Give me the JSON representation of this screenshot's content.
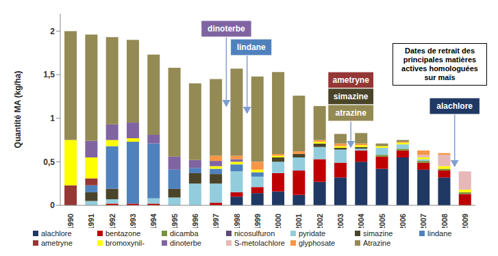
{
  "chart_data": {
    "type": "bar",
    "stacked": true,
    "grid": false,
    "legend": "bottom",
    "ylabel": "Quantité MA (kg/ha)",
    "categories": [
      "1990",
      "1991",
      "1992",
      "1993",
      "1994",
      "1995",
      "1996",
      "1997",
      "1998",
      "1999",
      "2000",
      "2001",
      "2002",
      "2003",
      "2004",
      "2005",
      "2006",
      "2007",
      "2008",
      "2009"
    ],
    "ylim": [
      0,
      2.2
    ],
    "yticks": [
      0,
      {
        "value": 0.5,
        "label": "0,5"
      },
      1,
      {
        "value": 1.5,
        "label": "1,5"
      },
      2
    ],
    "series": [
      {
        "name": "alachlore",
        "color": "#1f3864",
        "values": [
          0,
          0,
          0,
          0,
          0,
          0,
          0,
          0,
          0.1,
          0.14,
          0.16,
          0.12,
          0.27,
          0.32,
          0.5,
          0.42,
          0.55,
          0.41,
          0.32,
          0
        ]
      },
      {
        "name": "bentazone",
        "color": "#c00000",
        "values": [
          0,
          0,
          0.02,
          0.02,
          0.02,
          0,
          0,
          0.03,
          0.05,
          0.07,
          0.21,
          0.28,
          0.26,
          0.17,
          0.13,
          0.14,
          0.08,
          0.08,
          0.08,
          0.13
        ]
      },
      {
        "name": "dicamba",
        "color": "#77933c",
        "values": [
          0,
          0,
          0,
          0,
          0,
          0,
          0,
          0,
          0,
          0,
          0,
          0,
          0,
          0,
          0,
          0.02,
          0.02,
          0.02,
          0.02,
          0.02
        ]
      },
      {
        "name": "nicosulfuron",
        "color": "#604a7b",
        "values": [
          0,
          0,
          0,
          0,
          0,
          0,
          0,
          0,
          0,
          0,
          0,
          0,
          0,
          0,
          0,
          0,
          0,
          0,
          0,
          0
        ]
      },
      {
        "name": "pyridate",
        "color": "#93cddd",
        "values": [
          0,
          0.05,
          0.05,
          0,
          0.06,
          0.09,
          0.25,
          0.22,
          0.24,
          0.12,
          0.13,
          0.15,
          0.14,
          0.15,
          0.02,
          0.08,
          0.05,
          0.02,
          0,
          0
        ]
      },
      {
        "name": "simazine",
        "color": "#4a452a",
        "values": [
          0,
          0.1,
          0.12,
          0,
          0,
          0.1,
          0.12,
          0.11,
          0,
          0,
          0.05,
          0.04,
          0.04,
          0.02,
          0.02,
          0,
          0,
          0,
          0,
          0
        ]
      },
      {
        "name": "lindane",
        "color": "#4f81bd",
        "values": [
          0,
          0.08,
          0.49,
          0.71,
          0.63,
          0.22,
          0.06,
          0.06,
          0.08,
          0.05,
          0,
          0,
          0,
          0,
          0,
          0,
          0,
          0,
          0,
          0
        ]
      },
      {
        "name": "ametryne",
        "color": "#953735",
        "values": [
          0.23,
          0.08,
          0,
          0,
          0,
          0,
          0,
          0,
          0,
          0,
          0,
          0,
          0,
          0,
          0,
          0,
          0,
          0,
          0,
          0
        ]
      },
      {
        "name": "bromoxynil-",
        "color": "#ffff00",
        "values": [
          0.52,
          0.24,
          0.07,
          0.04,
          0,
          0,
          0,
          0.03,
          0.03,
          0.03,
          0.02,
          0,
          0.02,
          0.02,
          0.02,
          0.02,
          0.02,
          0.02,
          0.03,
          0.03
        ]
      },
      {
        "name": "dinoterbe",
        "color": "#8064a2",
        "values": [
          0,
          0.19,
          0.18,
          0.18,
          0.1,
          0.15,
          0.09,
          0.06,
          0.03,
          0,
          0,
          0,
          0,
          0,
          0,
          0,
          0,
          0,
          0,
          0
        ]
      },
      {
        "name": "S-metolachlore",
        "color": "#e6b9b8",
        "values": [
          0,
          0,
          0,
          0,
          0,
          0,
          0,
          0,
          0,
          0,
          0,
          0,
          0,
          0,
          0,
          0,
          0,
          0.03,
          0.13,
          0.21
        ]
      },
      {
        "name": "glyphosate",
        "color": "#f79646",
        "values": [
          0,
          0,
          0,
          0,
          0,
          0,
          0,
          0.06,
          0.04,
          0.09,
          0.02,
          0.03,
          0.02,
          0.03,
          0.02,
          0,
          0.01,
          0.05,
          0.02,
          0
        ]
      },
      {
        "name": "Atrazine",
        "color": "#948a54",
        "values": [
          1.25,
          1.22,
          1.0,
          0.95,
          0.92,
          1.02,
          0.88,
          0.88,
          1.0,
          0.98,
          0.94,
          0.64,
          0.39,
          0.11,
          0.12,
          0.03,
          0.02,
          0,
          0,
          0
        ]
      }
    ],
    "annotations": [
      {
        "labels": [
          {
            "text": "dinoterbe",
            "color": "#8064a2"
          }
        ],
        "between": [
          "1997",
          "1998"
        ],
        "y": 1.14
      },
      {
        "labels": [
          {
            "text": "lindane",
            "color": "#4f81bd"
          }
        ],
        "between": [
          "1998",
          "1999"
        ],
        "y": 1.06
      },
      {
        "labels": [
          {
            "text": "ametryne",
            "color": "#953735"
          },
          {
            "text": "simazine",
            "color": "#4a452a"
          },
          {
            "text": "atrazine",
            "color": "#948a54"
          }
        ],
        "between": [
          "2003",
          "2004"
        ],
        "y": 0.67
      },
      {
        "labels": [
          {
            "text": "alachlore",
            "color": "#1f3864"
          }
        ],
        "between": [
          "2008",
          "2009"
        ],
        "y": 0.45
      }
    ],
    "note": "Dates de retrait des principales matières actives homologuées sur maïs"
  }
}
